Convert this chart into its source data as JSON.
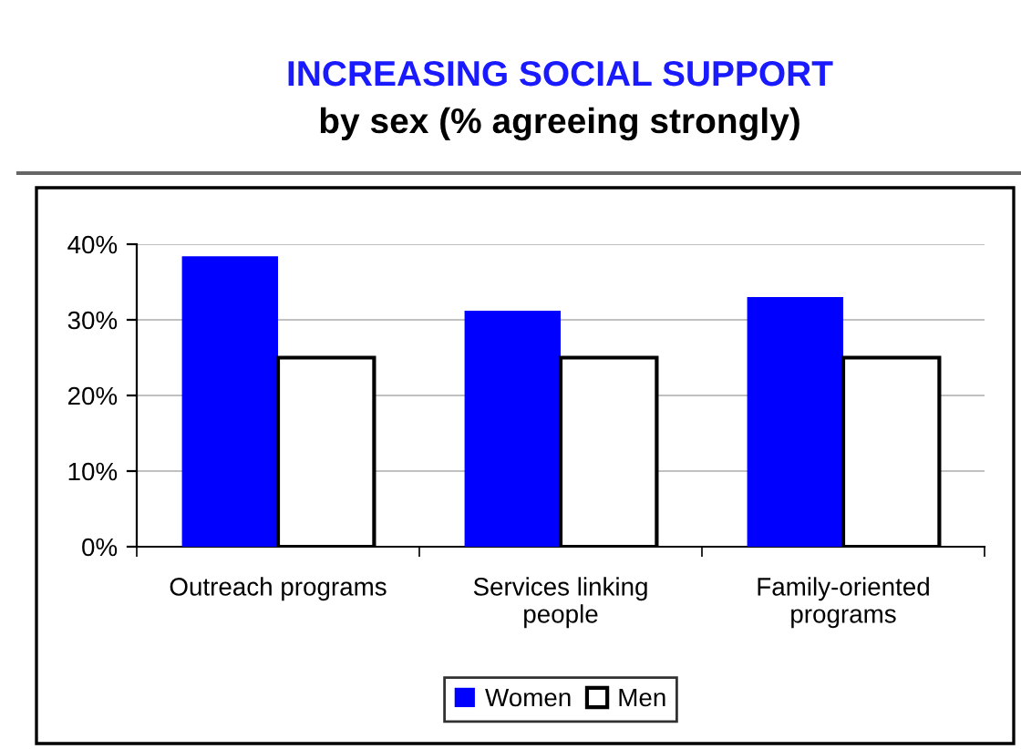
{
  "chart_data": {
    "type": "bar",
    "title": "INCREASING SOCIAL SUPPORT",
    "subtitle": "by sex (% agreeing strongly)",
    "categories": [
      "Outreach programs",
      "Services linking\npeople",
      "Family-oriented\nprograms"
    ],
    "series": [
      {
        "name": "Women",
        "color": "#0000ff",
        "values": [
          38.4,
          31.2,
          33.0
        ]
      },
      {
        "name": "Men",
        "color": "#ffffff",
        "values": [
          25,
          25,
          25
        ]
      }
    ],
    "ylim": [
      0,
      40
    ],
    "yticks": [
      {
        "value": 0,
        "label": "0%"
      },
      {
        "value": 10,
        "label": "10%"
      },
      {
        "value": 20,
        "label": "20%"
      },
      {
        "value": 30,
        "label": "30%"
      },
      {
        "value": 40,
        "label": "40%"
      }
    ],
    "grid": "y",
    "legend": "bottom"
  }
}
